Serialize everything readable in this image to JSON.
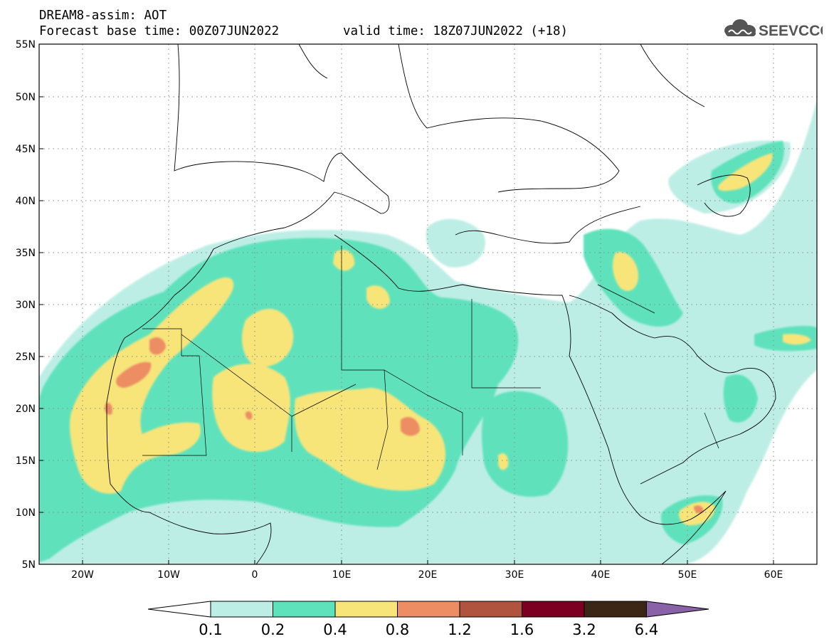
{
  "header": {
    "title": "DREAM8-assim: AOT",
    "base_time": "Forecast base time: 00Z07JUN2022",
    "valid_time": "valid time: 18Z07JUN2022 (+18)",
    "logo_text": "SEEVCCC"
  },
  "map": {
    "lon_range": [
      -25,
      65
    ],
    "lat_range": [
      5,
      55
    ],
    "lat_labels": [
      "55N",
      "50N",
      "45N",
      "40N",
      "35N",
      "30N",
      "25N",
      "20N",
      "15N",
      "10N",
      "5N"
    ],
    "lon_labels": [
      "20W",
      "10W",
      "0",
      "10E",
      "20E",
      "30E",
      "40E",
      "50E",
      "60E"
    ],
    "grid_dotted": true
  },
  "colorbar": {
    "levels": [
      "0.1",
      "0.2",
      "0.4",
      "0.8",
      "1.2",
      "1.6",
      "3.2",
      "6.4"
    ],
    "colors": [
      "#ffffff",
      "#bdeee5",
      "#5ee2bc",
      "#f7e57a",
      "#ec8d63",
      "#b05440",
      "#7c0022",
      "#3c2616",
      "#8a62a8"
    ]
  }
}
